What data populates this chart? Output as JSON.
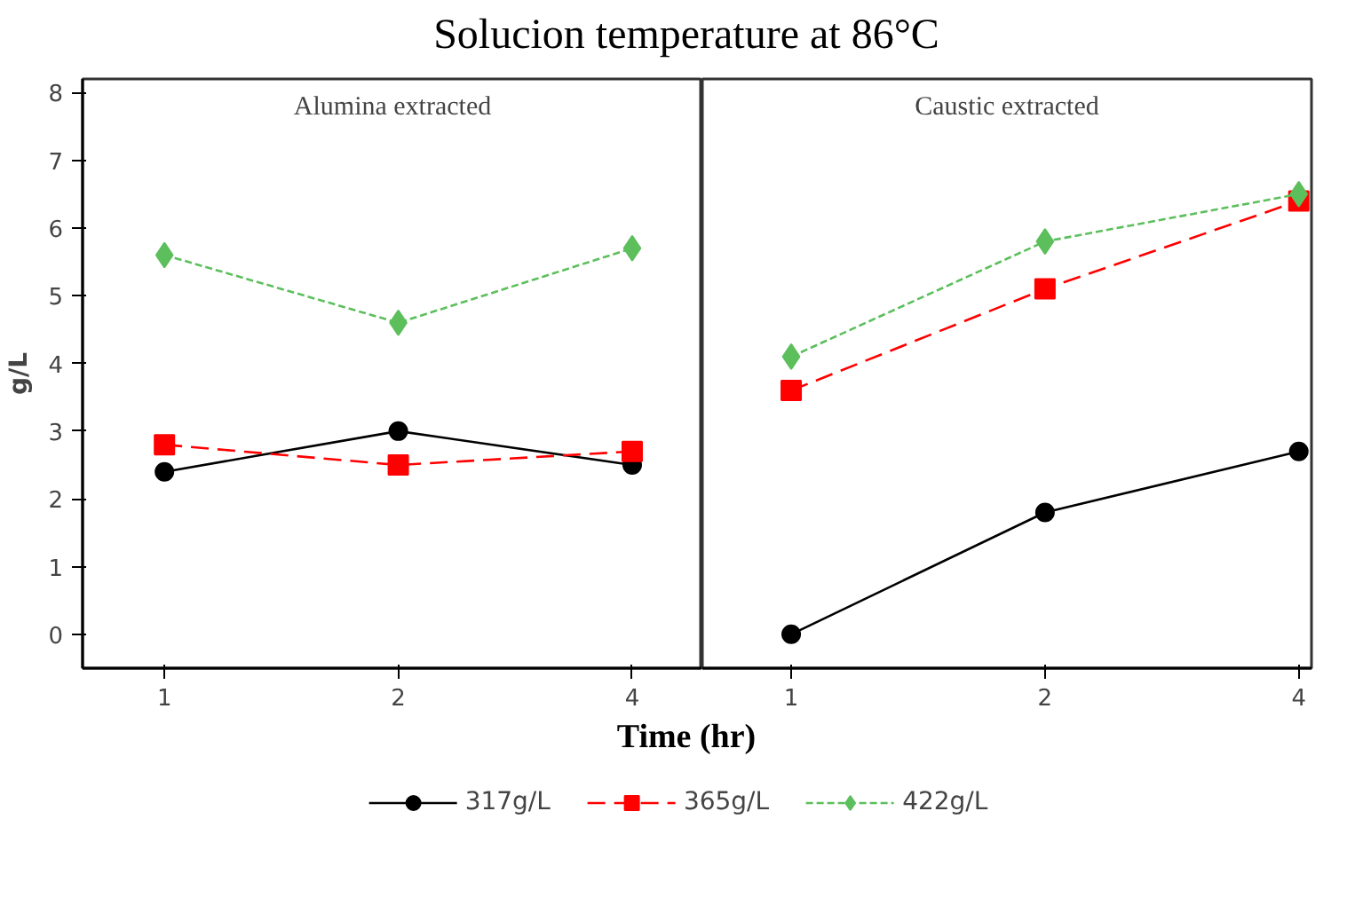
{
  "chart_data": [
    {
      "type": "line",
      "title": "Solucion temperature at 86°C",
      "xlabel": "Time (hr)",
      "ylabel": "g/L",
      "annotations": [
        "Alumina extracted"
      ],
      "categories": [
        "1",
        "2",
        "4"
      ],
      "ylim": [
        -0.5,
        8.2
      ],
      "yticks": [
        0,
        1,
        2,
        3,
        4,
        5,
        6,
        7,
        8
      ],
      "grid": false,
      "legend": "bottom",
      "series": [
        {
          "name": "317g/L",
          "color": "#000000",
          "marker": "circle",
          "line_style": "solid",
          "values": [
            2.4,
            3.0,
            2.5
          ]
        },
        {
          "name": "365g/L",
          "color": "#ff0000",
          "marker": "square",
          "line_style": "dashed",
          "values": [
            2.8,
            2.5,
            2.7
          ]
        },
        {
          "name": "422g/L",
          "color": "#5cbf5c",
          "marker": "diamond",
          "line_style": "dotted",
          "values": [
            5.6,
            4.6,
            5.7
          ]
        }
      ]
    },
    {
      "type": "line",
      "annotations": [
        "Caustic extracted"
      ],
      "categories": [
        "1",
        "2",
        "4"
      ],
      "ylim": [
        -0.5,
        8.2
      ],
      "yticks": [
        0,
        1,
        2,
        3,
        4,
        5,
        6,
        7,
        8
      ],
      "grid": false,
      "tick_labels": "x",
      "series": [
        {
          "color": "#000000",
          "marker": "circle",
          "line_style": "solid",
          "values": [
            0,
            1.8,
            2.7
          ]
        },
        {
          "color": "#ff0000",
          "marker": "square",
          "line_style": "dashed",
          "values": [
            3.6,
            5.1,
            6.4
          ]
        },
        {
          "color": "#5cbf5c",
          "marker": "diamond",
          "line_style": "dotted",
          "values": [
            4.1,
            5.8,
            6.5
          ]
        }
      ]
    }
  ]
}
